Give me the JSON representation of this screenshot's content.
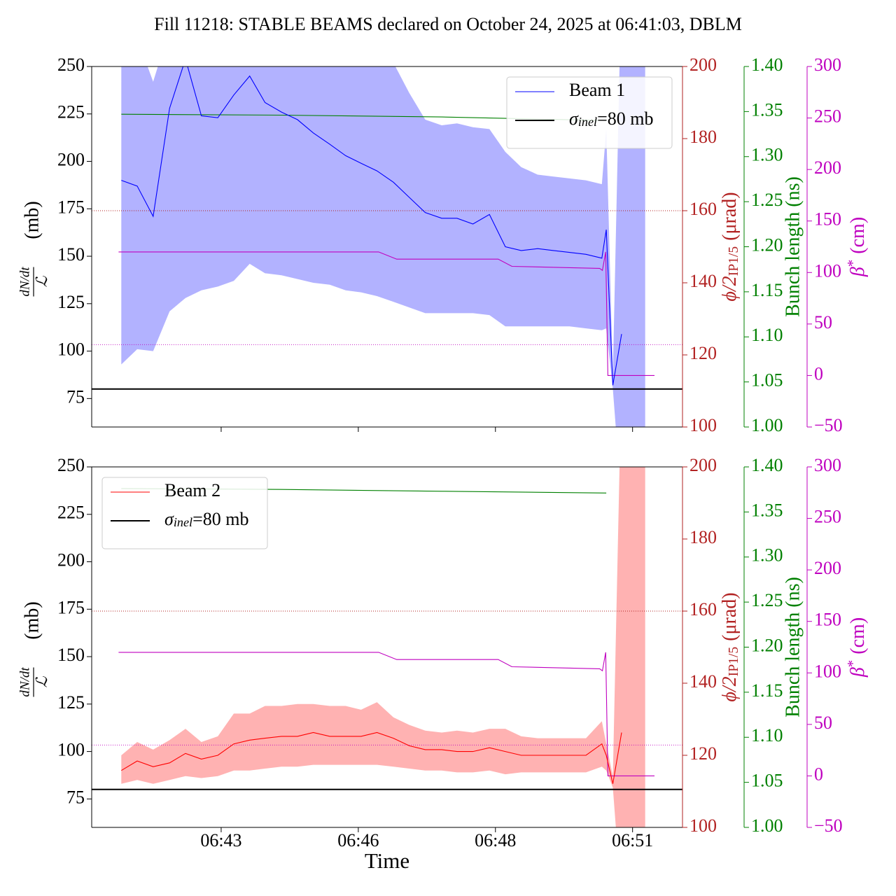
{
  "title": "Fill 11218: STABLE BEAMS declared on October 24, 2025 at 06:41:03, DBLM",
  "xlabel": "Time",
  "chart_data": [
    {
      "type": "line",
      "x": [
        41.93,
        42.22,
        42.51,
        42.81,
        43.1,
        43.39,
        43.69,
        43.98,
        44.27,
        44.55,
        44.85,
        45.14,
        45.43,
        45.73,
        46.02,
        46.3,
        46.59,
        46.89,
        47.18,
        47.47,
        47.77,
        48.05,
        48.34,
        48.64,
        48.93,
        49.22,
        49.52,
        49.81,
        50.1,
        50.4,
        50.69,
        50.77,
        50.89,
        51.05,
        51.48
      ],
      "xlim": [
        41.39,
        52.16
      ],
      "ylim": [
        60,
        250
      ],
      "yticks": [
        75,
        100,
        125,
        150,
        175,
        200,
        225,
        250
      ],
      "ylabel": {
        "numerator": "dN/dt",
        "denominator": "ℒ",
        "unit": "(mb)"
      },
      "legend": "upper right",
      "series": [
        {
          "name": "Beam 1",
          "color": "#0000ff",
          "values": [
            190,
            187,
            171,
            228,
            254,
            224,
            223,
            235,
            245,
            231,
            226,
            222,
            215,
            209,
            203,
            199,
            195,
            189,
            181,
            173,
            170,
            170,
            167,
            172,
            155,
            153,
            154,
            153,
            152,
            151,
            149,
            164,
            82,
            109,
            null
          ],
          "upper": [
            265,
            265,
            242,
            270,
            270,
            270,
            270,
            270,
            270,
            270,
            270,
            270,
            270,
            270,
            270,
            270,
            268,
            252,
            236,
            222,
            219,
            220,
            218,
            217,
            205,
            197,
            193,
            192,
            191,
            190,
            188,
            217,
            88,
            300,
            300
          ],
          "lower": [
            93,
            101,
            100,
            121,
            128,
            132,
            134,
            137,
            146,
            141,
            140,
            138,
            136,
            135,
            132,
            131,
            129,
            126,
            123,
            120,
            120,
            120,
            120,
            119,
            113,
            113,
            113,
            113,
            113,
            112,
            111,
            112,
            80,
            20,
            20
          ]
        }
      ],
      "reference_line": {
        "value": 80,
        "color": "#000000",
        "label": {
          "symbol": "σ",
          "sub": "inel",
          "text": "=80 mb"
        }
      },
      "axes": [
        {
          "label": {
            "main": "ϕ/2",
            "sub": "IP1/5",
            "unit": "(μrad)"
          },
          "color": "#b22222",
          "ylim": [
            100,
            200
          ],
          "yticks": [
            100,
            120,
            140,
            160,
            180,
            200
          ],
          "reference": 160
        },
        {
          "label": "Bunch length (ns)",
          "color": "#008000",
          "ylim": [
            1.0,
            1.4
          ],
          "yticks": [
            {
              "value": 1,
              "label": "1.00"
            },
            {
              "value": 1.05,
              "label": "1.05"
            },
            {
              "value": 1.1,
              "label": "1.10"
            },
            {
              "value": 1.15,
              "label": "1.15"
            },
            {
              "value": 1.2,
              "label": "1.20"
            },
            {
              "value": 1.25,
              "label": "1.25"
            },
            {
              "value": 1.3,
              "label": "1.30"
            },
            {
              "value": 1.35,
              "label": "1.35"
            },
            {
              "value": 1.4,
              "label": "1.40"
            }
          ],
          "x": [
            41.93,
            44.85,
            47.77,
            50.77
          ],
          "values": [
            1.347,
            1.346,
            1.344,
            1.34
          ]
        },
        {
          "label": {
            "main": "β",
            "sup": "*",
            "unit": "(cm)"
          },
          "color": "#bf00bf",
          "ylim": [
            -50,
            300
          ],
          "yticks": [
            {
              "value": -50,
              "label": "−50"
            },
            0,
            50,
            100,
            150,
            200,
            250,
            300
          ],
          "reference": 30,
          "x": [
            41.88,
            46.62,
            46.95,
            48.8,
            49.05,
            50.65,
            50.7,
            50.76,
            50.8,
            51.65
          ],
          "values": [
            120,
            120,
            113,
            113,
            106,
            104,
            102,
            120,
            0,
            0
          ]
        }
      ]
    },
    {
      "type": "line",
      "x": [
        41.93,
        42.22,
        42.51,
        42.81,
        43.1,
        43.39,
        43.69,
        43.98,
        44.27,
        44.55,
        44.85,
        45.14,
        45.43,
        45.73,
        46.02,
        46.3,
        46.59,
        46.89,
        47.18,
        47.47,
        47.77,
        48.05,
        48.34,
        48.64,
        48.93,
        49.22,
        49.52,
        49.81,
        50.1,
        50.4,
        50.69,
        50.77,
        50.89,
        51.05,
        51.48
      ],
      "xlim": [
        41.39,
        52.16
      ],
      "xticks": [
        {
          "value": 43.75,
          "label": "06:43"
        },
        {
          "value": 46.25,
          "label": "06:46"
        },
        {
          "value": 48.75,
          "label": "06:48"
        },
        {
          "value": 51.25,
          "label": "06:51"
        }
      ],
      "ylim": [
        60,
        250
      ],
      "yticks": [
        75,
        100,
        125,
        150,
        175,
        200,
        225,
        250
      ],
      "ylabel": {
        "numerator": "dN/dt",
        "denominator": "ℒ",
        "unit": "(mb)"
      },
      "legend": "upper left",
      "series": [
        {
          "name": "Beam 2",
          "color": "#ff0000",
          "values": [
            90,
            95,
            92,
            94,
            99,
            96,
            98,
            104,
            106,
            107,
            108,
            108,
            110,
            108,
            108,
            108,
            110,
            107,
            103,
            101,
            101,
            100,
            100,
            102,
            100,
            98,
            98,
            98,
            98,
            98,
            104,
            98,
            83,
            110,
            null
          ],
          "upper": [
            98,
            105,
            101,
            106,
            112,
            105,
            108,
            120,
            120,
            124,
            124,
            125,
            125,
            124,
            124,
            122,
            126,
            118,
            114,
            111,
            110,
            111,
            110,
            112,
            112,
            108,
            107,
            107,
            107,
            107,
            116,
            104,
            87,
            300,
            300
          ],
          "lower": [
            83,
            85,
            83,
            85,
            87,
            86,
            87,
            90,
            90,
            91,
            92,
            92,
            93,
            93,
            93,
            93,
            93,
            92,
            91,
            90,
            90,
            89,
            89,
            90,
            88,
            89,
            89,
            89,
            89,
            89,
            92,
            90,
            81,
            20,
            20
          ]
        }
      ],
      "reference_line": {
        "value": 80,
        "color": "#000000",
        "label": {
          "symbol": "σ",
          "sub": "inel",
          "text": "=80 mb"
        }
      },
      "axes": [
        {
          "label": {
            "main": "ϕ/2",
            "sub": "IP1/5",
            "unit": "(μrad)"
          },
          "color": "#b22222",
          "ylim": [
            100,
            200
          ],
          "yticks": [
            100,
            120,
            140,
            160,
            180,
            200
          ],
          "reference": 160
        },
        {
          "label": "Bunch length (ns)",
          "color": "#008000",
          "ylim": [
            1.0,
            1.4
          ],
          "yticks": [
            {
              "value": 1,
              "label": "1.00"
            },
            {
              "value": 1.05,
              "label": "1.05"
            },
            {
              "value": 1.1,
              "label": "1.10"
            },
            {
              "value": 1.15,
              "label": "1.15"
            },
            {
              "value": 1.2,
              "label": "1.20"
            },
            {
              "value": 1.25,
              "label": "1.25"
            },
            {
              "value": 1.3,
              "label": "1.30"
            },
            {
              "value": 1.35,
              "label": "1.35"
            },
            {
              "value": 1.4,
              "label": "1.40"
            }
          ],
          "x": [
            41.93,
            44.85,
            47.77,
            50.77
          ],
          "values": [
            1.376,
            1.375,
            1.373,
            1.371
          ]
        },
        {
          "label": {
            "main": "β",
            "sup": "*",
            "unit": "(cm)"
          },
          "color": "#bf00bf",
          "ylim": [
            -50,
            300
          ],
          "yticks": [
            {
              "value": -50,
              "label": "−50"
            },
            0,
            50,
            100,
            150,
            200,
            250,
            300
          ],
          "reference": 30,
          "x": [
            41.88,
            46.62,
            46.95,
            48.8,
            49.05,
            50.65,
            50.7,
            50.76,
            50.8,
            51.65
          ],
          "values": [
            120,
            120,
            113,
            113,
            106,
            104,
            102,
            120,
            0,
            0
          ]
        }
      ]
    }
  ]
}
